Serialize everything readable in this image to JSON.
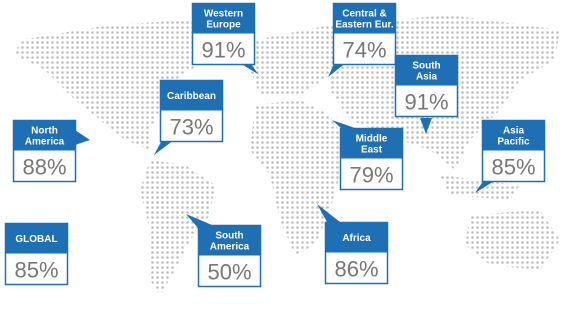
{
  "regions": [
    {
      "name": [
        "Western",
        "Europe"
      ],
      "value": "91%"
    },
    {
      "name": [
        "Central &",
        "Eastern Eur."
      ],
      "value": "74%"
    },
    {
      "name": [
        "South",
        "Asia"
      ],
      "value": "91%"
    },
    {
      "name": [
        "Caribbean"
      ],
      "value": "73%"
    },
    {
      "name": [
        "North",
        "America"
      ],
      "value": "88%"
    },
    {
      "name": [
        "Middle",
        "East"
      ],
      "value": "79%"
    },
    {
      "name": [
        "Asia",
        "Pacific"
      ],
      "value": "85%"
    },
    {
      "name": [
        "GLOBAL"
      ],
      "value": "85%"
    },
    {
      "name": [
        "South",
        "America"
      ],
      "value": "50%"
    },
    {
      "name": [
        "Africa"
      ],
      "value": "86%"
    }
  ]
}
